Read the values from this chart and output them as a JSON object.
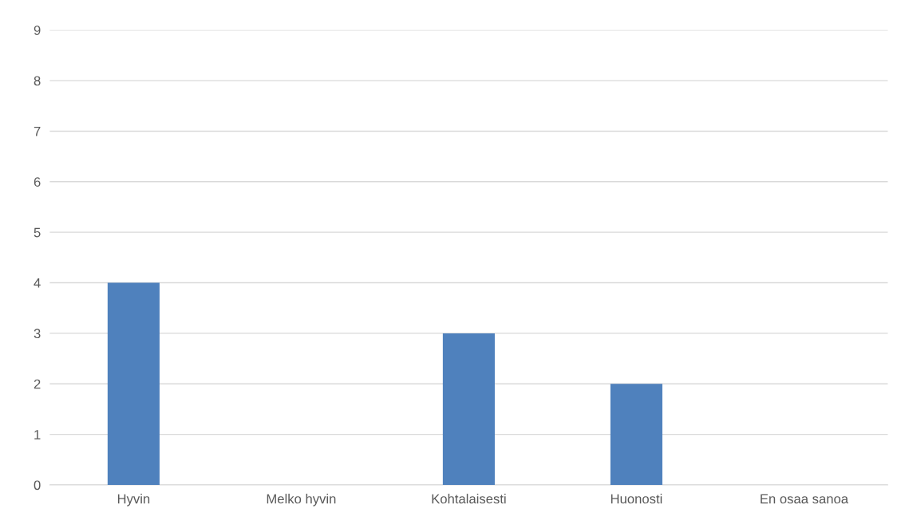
{
  "chart_data": {
    "type": "bar",
    "categories": [
      "Hyvin",
      "Melko hyvin",
      "Kohtalaisesti",
      "Huonosti",
      "En osaa sanoa"
    ],
    "values": [
      4,
      0,
      3,
      2,
      0
    ],
    "color": "#4f81bd",
    "ylim": [
      0,
      9
    ],
    "yticks": [
      0,
      1,
      2,
      3,
      4,
      5,
      6,
      7,
      8,
      9
    ],
    "grid": "y"
  }
}
